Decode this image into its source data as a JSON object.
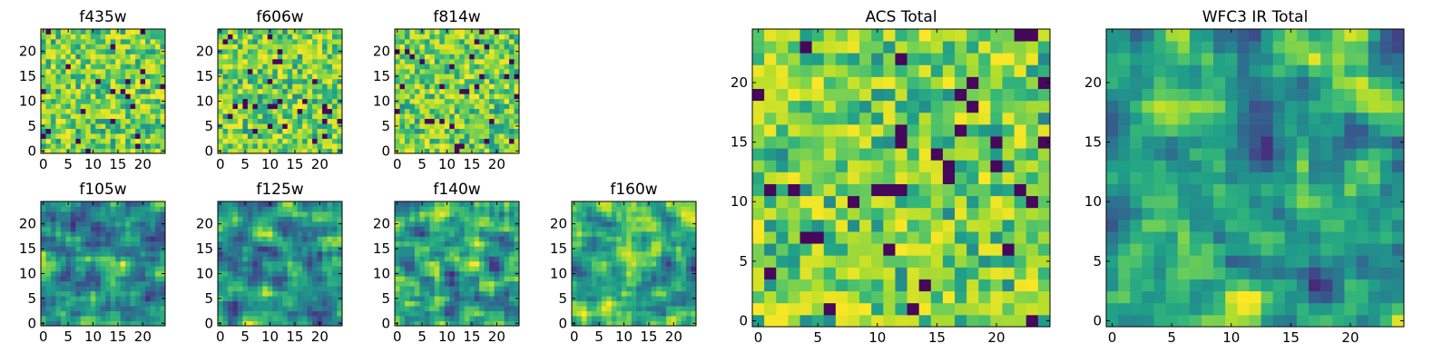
{
  "figure": {
    "background": "#ffffff",
    "colormap": "viridis"
  },
  "chart_data": [
    {
      "type": "heatmap",
      "title": "f435w",
      "rows": 25,
      "cols": 25,
      "xlim": [
        0,
        24
      ],
      "ylim": [
        0,
        24
      ],
      "xticks": [
        0,
        5,
        10,
        15,
        20
      ],
      "yticks": [
        0,
        5,
        10,
        15,
        20
      ],
      "pattern": "noise"
    },
    {
      "type": "heatmap",
      "title": "f606w",
      "rows": 25,
      "cols": 25,
      "xlim": [
        0,
        24
      ],
      "ylim": [
        0,
        24
      ],
      "xticks": [
        0,
        5,
        10,
        15,
        20
      ],
      "yticks": [
        0,
        5,
        10,
        15,
        20
      ],
      "pattern": "noise"
    },
    {
      "type": "heatmap",
      "title": "f814w",
      "rows": 25,
      "cols": 25,
      "xlim": [
        0,
        24
      ],
      "ylim": [
        0,
        24
      ],
      "xticks": [
        0,
        5,
        10,
        15,
        20
      ],
      "yticks": [
        0,
        5,
        10,
        15,
        20
      ],
      "pattern": "noise"
    },
    {
      "type": "heatmap",
      "title": "f105w",
      "rows": 25,
      "cols": 25,
      "xlim": [
        0,
        24
      ],
      "ylim": [
        0,
        24
      ],
      "xticks": [
        0,
        5,
        10,
        15,
        20
      ],
      "yticks": [
        0,
        5,
        10,
        15,
        20
      ],
      "pattern": "smooth"
    },
    {
      "type": "heatmap",
      "title": "f125w",
      "rows": 25,
      "cols": 25,
      "xlim": [
        0,
        24
      ],
      "ylim": [
        0,
        24
      ],
      "xticks": [
        0,
        5,
        10,
        15,
        20
      ],
      "yticks": [
        0,
        5,
        10,
        15,
        20
      ],
      "pattern": "smooth"
    },
    {
      "type": "heatmap",
      "title": "f140w",
      "rows": 25,
      "cols": 25,
      "xlim": [
        0,
        24
      ],
      "ylim": [
        0,
        24
      ],
      "xticks": [
        0,
        5,
        10,
        15,
        20
      ],
      "yticks": [
        0,
        5,
        10,
        15,
        20
      ],
      "pattern": "smooth"
    },
    {
      "type": "heatmap",
      "title": "f160w",
      "rows": 25,
      "cols": 25,
      "xlim": [
        0,
        24
      ],
      "ylim": [
        0,
        24
      ],
      "xticks": [
        0,
        5,
        10,
        15,
        20
      ],
      "yticks": [
        0,
        5,
        10,
        15,
        20
      ],
      "pattern": "smooth"
    },
    {
      "type": "heatmap",
      "title": "ACS Total",
      "rows": 25,
      "cols": 25,
      "xlim": [
        0,
        24
      ],
      "ylim": [
        0,
        24
      ],
      "xticks": [
        0,
        5,
        10,
        15,
        20
      ],
      "yticks": [
        0,
        5,
        10,
        15,
        20
      ],
      "pattern": "noise"
    },
    {
      "type": "heatmap",
      "title": "WFC3 IR Total",
      "rows": 25,
      "cols": 25,
      "xlim": [
        0,
        24
      ],
      "ylim": [
        0,
        24
      ],
      "xticks": [
        0,
        5,
        10,
        15,
        20
      ],
      "yticks": [
        0,
        5,
        10,
        15,
        20
      ],
      "pattern": "smooth"
    }
  ]
}
